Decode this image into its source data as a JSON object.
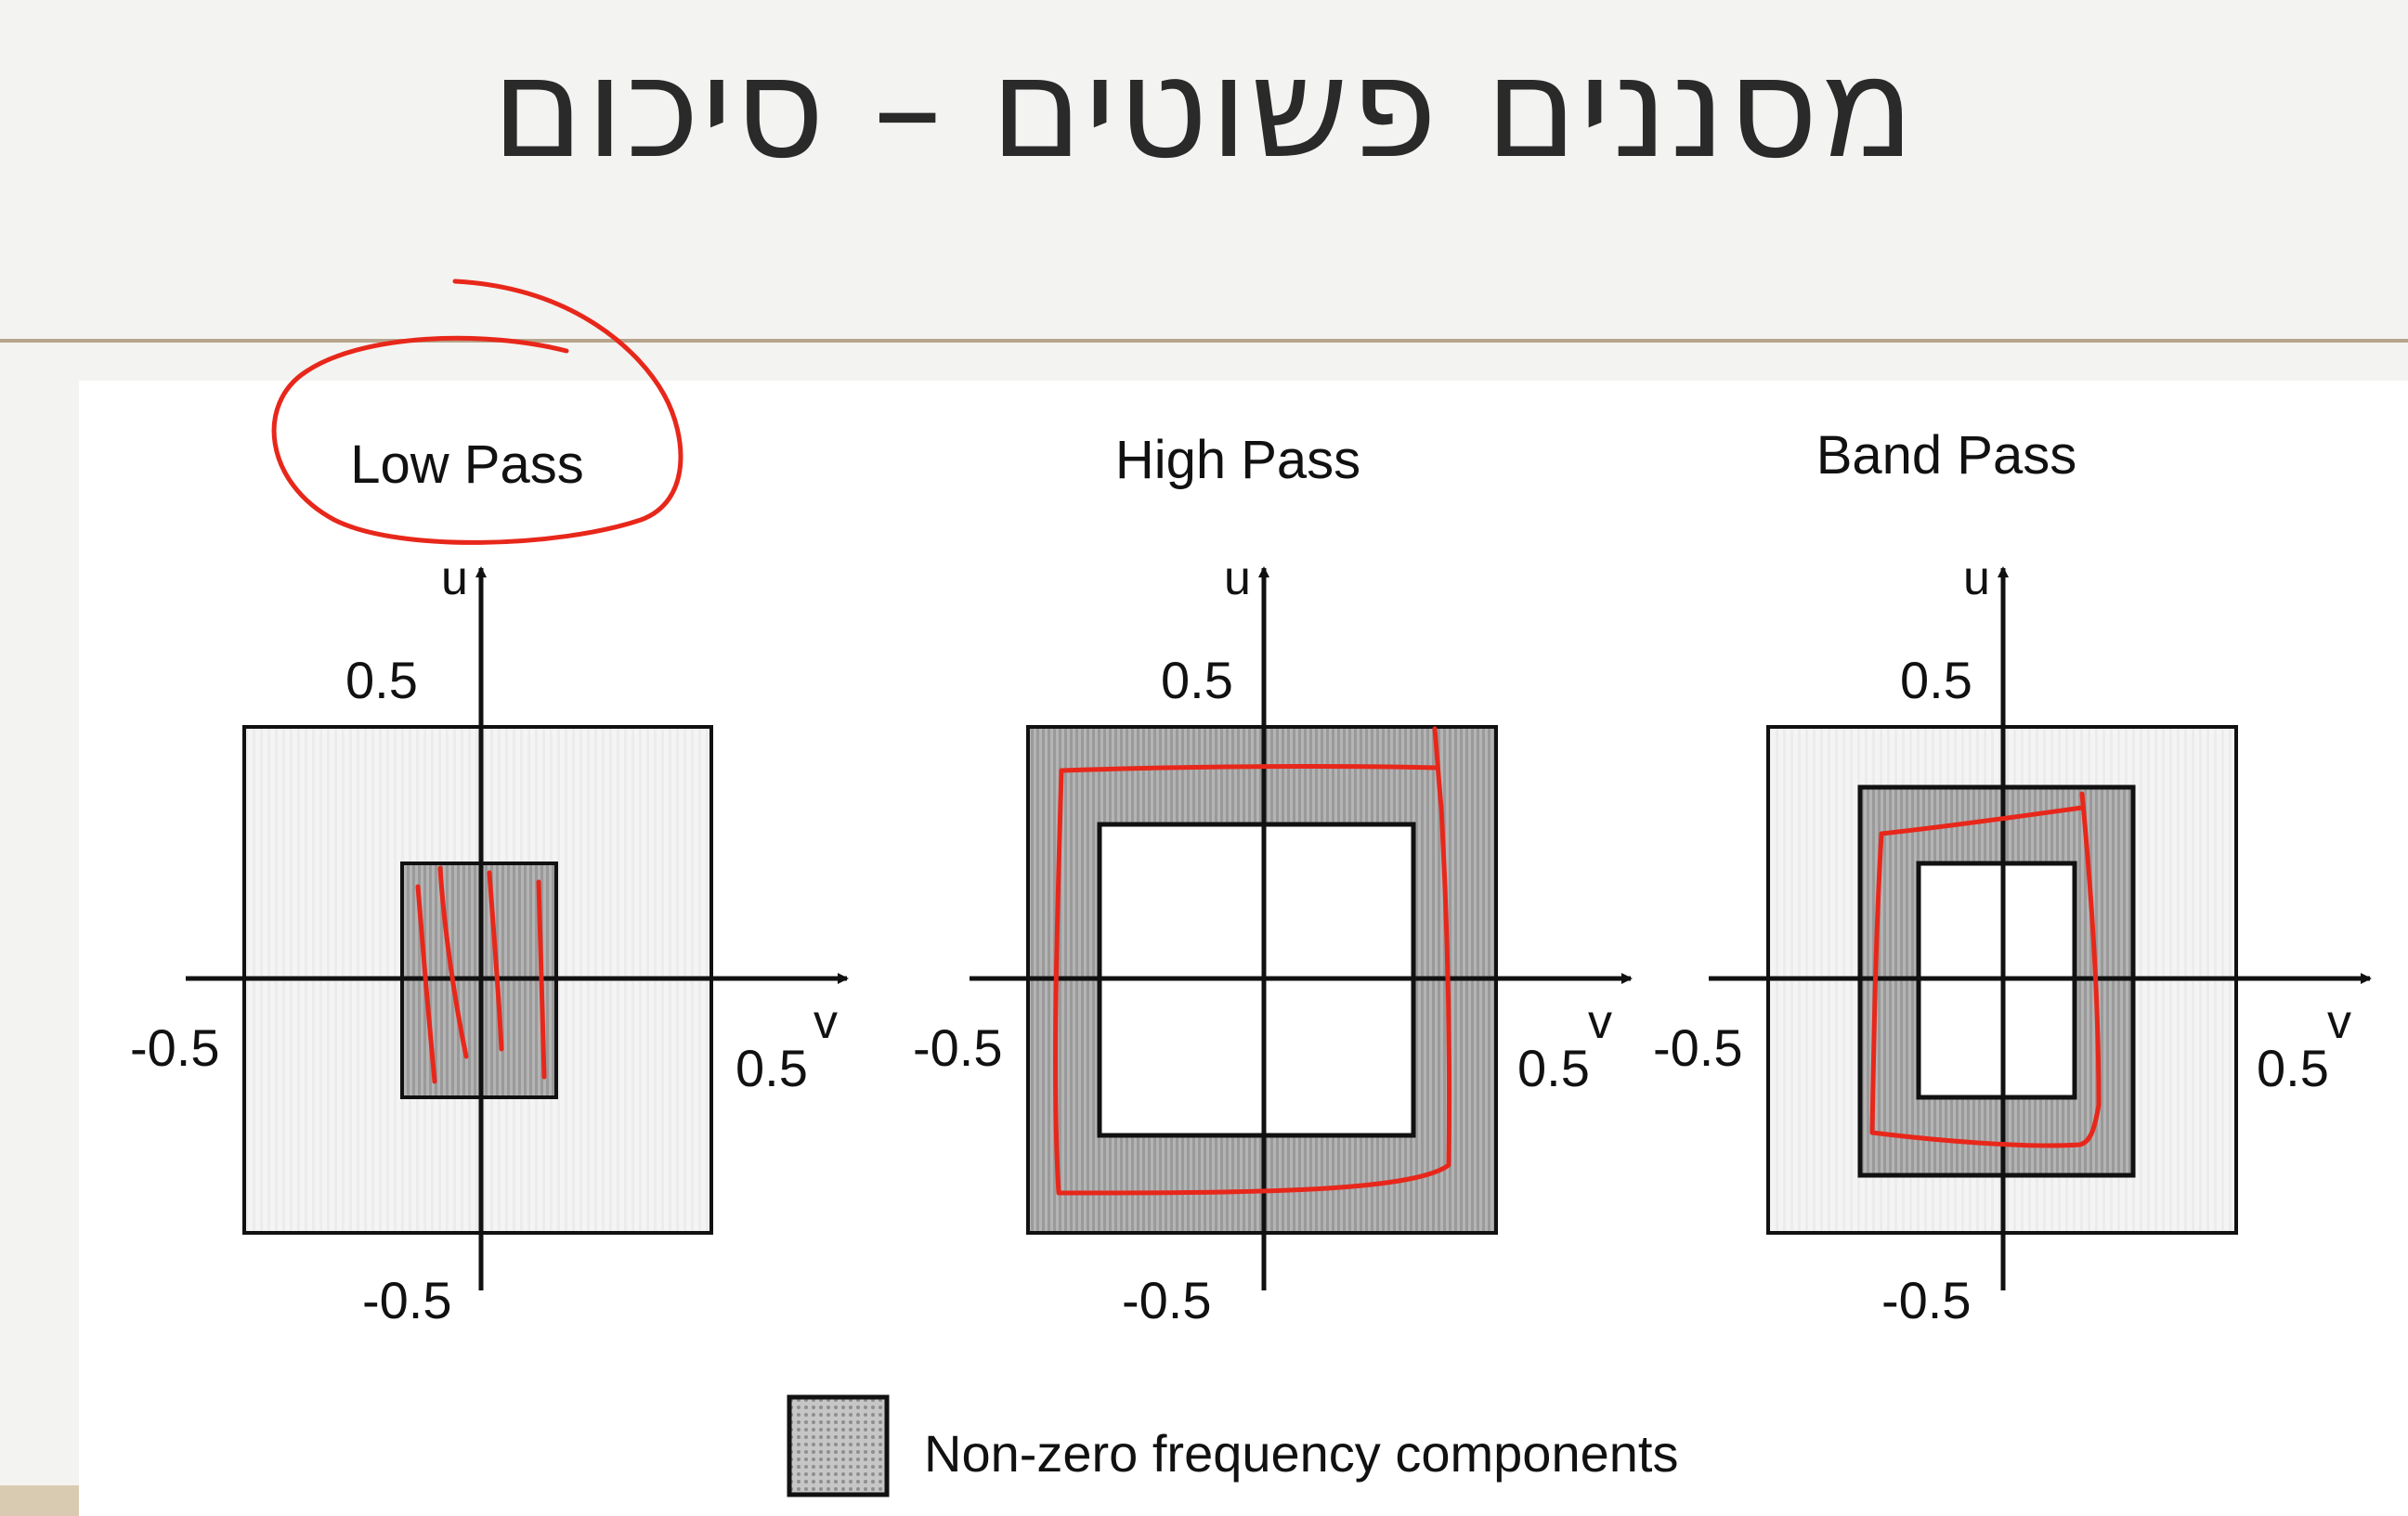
{
  "slide": {
    "title": "מסננים פשוטים – סיכום"
  },
  "colors": {
    "ink": "#111111",
    "outer_fill": "#f2f2f2",
    "shaded_fill": "#b0b0b0",
    "annotation": "#e8271b",
    "divider": "#b6a58c"
  },
  "panels": [
    {
      "title": "Low Pass",
      "u_label": "u",
      "v_label": "v",
      "u_top": "0.5",
      "u_bottom": "-0.5",
      "v_left": "-0.5",
      "v_right": "0.5",
      "shaded_region": "center rectangle"
    },
    {
      "title": "High Pass",
      "u_label": "u",
      "v_label": "v",
      "u_top": "0.5",
      "u_bottom": "-0.5",
      "v_left": "-0.5",
      "v_right": "0.5",
      "shaded_region": "outer frame"
    },
    {
      "title": "Band Pass",
      "u_label": "u",
      "v_label": "v",
      "u_top": "0.5",
      "u_bottom": "-0.5",
      "v_left": "-0.5",
      "v_right": "0.5",
      "shaded_region": "middle ring"
    }
  ],
  "legend": {
    "label": "Non-zero frequency components"
  }
}
